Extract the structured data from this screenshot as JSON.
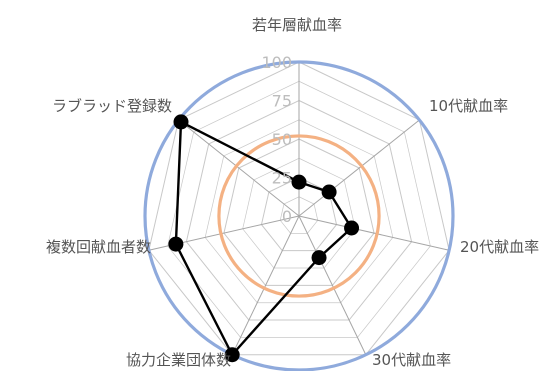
{
  "chart_data": {
    "type": "radar",
    "title": "",
    "categories": [
      "若年層献血率",
      "10代献血率",
      "20代献血率",
      "30代献血率",
      "協力企業団体数",
      "複数回献血者数",
      "ラブラッド登録数"
    ],
    "ticks": [
      0,
      25,
      50,
      75,
      100
    ],
    "rlim": [
      0,
      100
    ],
    "grid": true,
    "series": [
      {
        "values": [
          22,
          25,
          35,
          30,
          100,
          82,
          98
        ]
      }
    ],
    "reference_circles": [
      {
        "value": 100,
        "color": "#8faadc"
      },
      {
        "value": 52,
        "color": "#f4b183"
      }
    ],
    "colors": {
      "series_line": "#000000",
      "series_marker": "#000000",
      "grid": "#c8c8c8",
      "axis": "#a6a6a6",
      "label": "#555555",
      "tick": "#bdbdbd"
    }
  }
}
